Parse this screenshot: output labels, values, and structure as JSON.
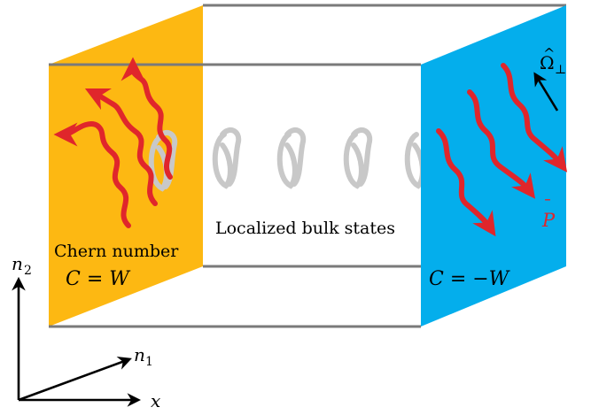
{
  "colors": {
    "left_face": "#FDB812",
    "right_face": "#04AEEC",
    "edge": "#7a7a7a",
    "red_arrow": "#E0262B",
    "gray_coil": "#C8C8C8",
    "axis": "#000000"
  },
  "labels": {
    "chern_number": "Chern number",
    "left_chern": "C = W",
    "right_chern": "C = −W",
    "bulk": "Localized bulk states",
    "omega_base": "Ω",
    "omega_hat": "^",
    "omega_sub": "⊥",
    "p_base": "P",
    "p_bar": "¯",
    "axis_n2_base": "n",
    "axis_n2_sub": "2",
    "axis_n1_base": "n",
    "axis_n1_sub": "1",
    "axis_x": "x"
  }
}
